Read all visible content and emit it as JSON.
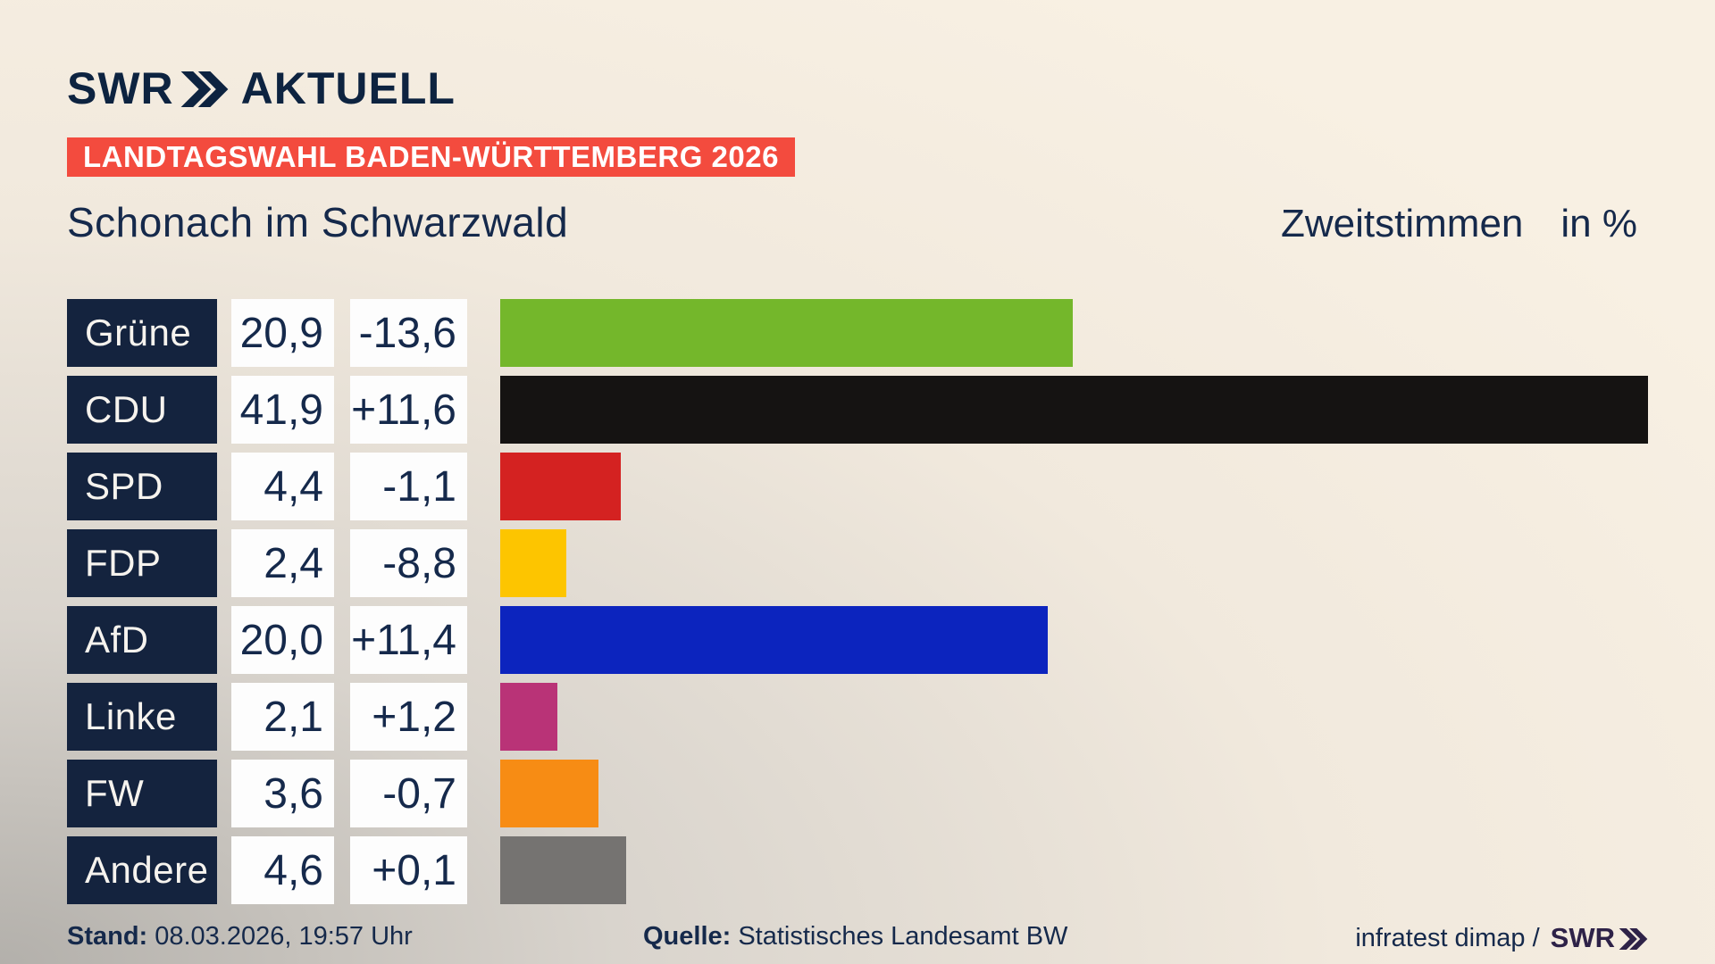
{
  "brand": {
    "logo_swr": "SWR",
    "logo_aktuell": "AKTUELL"
  },
  "header": {
    "badge": "LANDTAGSWAHL BADEN-WÜRTTEMBERG 2026",
    "title": "Schonach im Schwarzwald",
    "subtitle": "Zweitstimmen",
    "unit": "in %"
  },
  "chart_data": {
    "type": "bar",
    "orientation": "horizontal",
    "title": "Schonach im Schwarzwald",
    "value_label": "Zweitstimmen",
    "unit": "%",
    "xlim": [
      0,
      41.9
    ],
    "grid": false,
    "legend": "none",
    "categories": [
      "Grüne",
      "CDU",
      "SPD",
      "FDP",
      "AfD",
      "Linke",
      "FW",
      "Andere"
    ],
    "values": [
      20.9,
      41.9,
      4.4,
      2.4,
      20.0,
      2.1,
      3.6,
      4.6
    ],
    "display_values": [
      "20,9",
      "41,9",
      "4,4",
      "2,4",
      "20,0",
      "2,1",
      "3,6",
      "4,6"
    ],
    "changes": [
      "-13,6",
      "+11,6",
      "-1,1",
      "-8,8",
      "+11,4",
      "+1,2",
      "-0,7",
      "+0,1"
    ],
    "colors": [
      "#74b72b",
      "#151312",
      "#d42221",
      "#fdc500",
      "#0c24be",
      "#b93377",
      "#f78c14",
      "#757371"
    ]
  },
  "footer": {
    "stand_label": "Stand:",
    "stand_value": "08.03.2026, 19:57 Uhr",
    "quelle_label": "Quelle:",
    "quelle_value": "Statistisches Landesamt BW",
    "credit": "infratest dimap /",
    "credit_logo": "SWR"
  },
  "theme": {
    "navy_box": "#14233e",
    "text_navy": "#15294b",
    "badge_red": "#f34b3e",
    "credit_purple": "#2e2248",
    "background_light": "#f8f0e3",
    "background_dark": "#b3b0ab"
  }
}
